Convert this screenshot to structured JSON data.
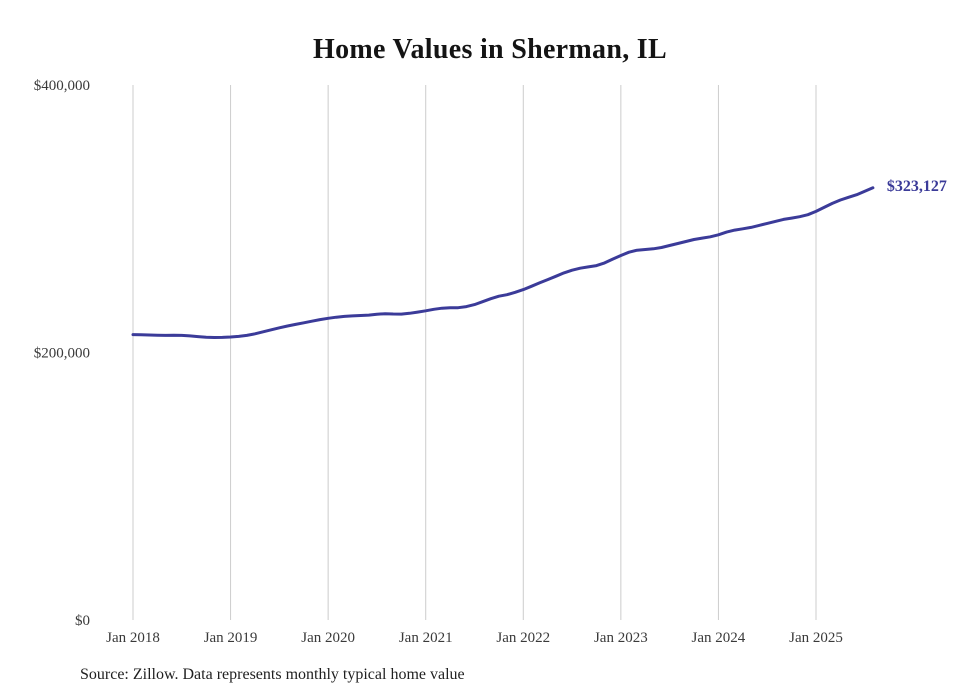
{
  "title": "Home Values in Sherman, IL",
  "source": "Source: Zillow. Data represents monthly typical home value",
  "chart_data": {
    "type": "line",
    "title": "Home Values in Sherman, IL",
    "series_name": "Monthly typical home value",
    "frequency": "monthly",
    "x_start": "2018-01",
    "x_end": "2025-08",
    "x_tick_labels": [
      "Jan 2018",
      "Jan 2019",
      "Jan 2020",
      "Jan 2021",
      "Jan 2022",
      "Jan 2023",
      "Jan 2024",
      "Jan 2025"
    ],
    "y_ticks": [
      0,
      200000,
      400000
    ],
    "y_tick_labels": [
      "$0",
      "$200,000",
      "$400,000"
    ],
    "ylim": [
      0,
      400000
    ],
    "values": [
      213400,
      213300,
      213100,
      212900,
      212800,
      212900,
      212800,
      212400,
      211900,
      211400,
      211200,
      211300,
      211600,
      212000,
      212800,
      214000,
      215500,
      217000,
      218500,
      219800,
      221000,
      222200,
      223400,
      224600,
      225600,
      226400,
      227000,
      227400,
      227700,
      228000,
      228600,
      229000,
      228800,
      228700,
      229300,
      230200,
      231200,
      232300,
      233100,
      233400,
      233500,
      234300,
      235800,
      238000,
      240200,
      242100,
      243200,
      245000,
      247000,
      249500,
      252000,
      254500,
      257000,
      259500,
      261500,
      263000,
      264000,
      265000,
      267000,
      269800,
      272500,
      275000,
      276500,
      277000,
      277500,
      278500,
      280000,
      281500,
      283000,
      284500,
      285500,
      286500,
      288000,
      290000,
      291500,
      292500,
      293500,
      295000,
      296500,
      298000,
      299500,
      300500,
      301500,
      303000,
      305500,
      308500,
      311500,
      314000,
      316000,
      318000,
      320500,
      323127
    ],
    "last_value": 323127,
    "last_value_label": "$323,127",
    "line_color": "#3b3b99",
    "grid_color": "#cccccc",
    "grid": "vertical-only",
    "legend": "none"
  }
}
